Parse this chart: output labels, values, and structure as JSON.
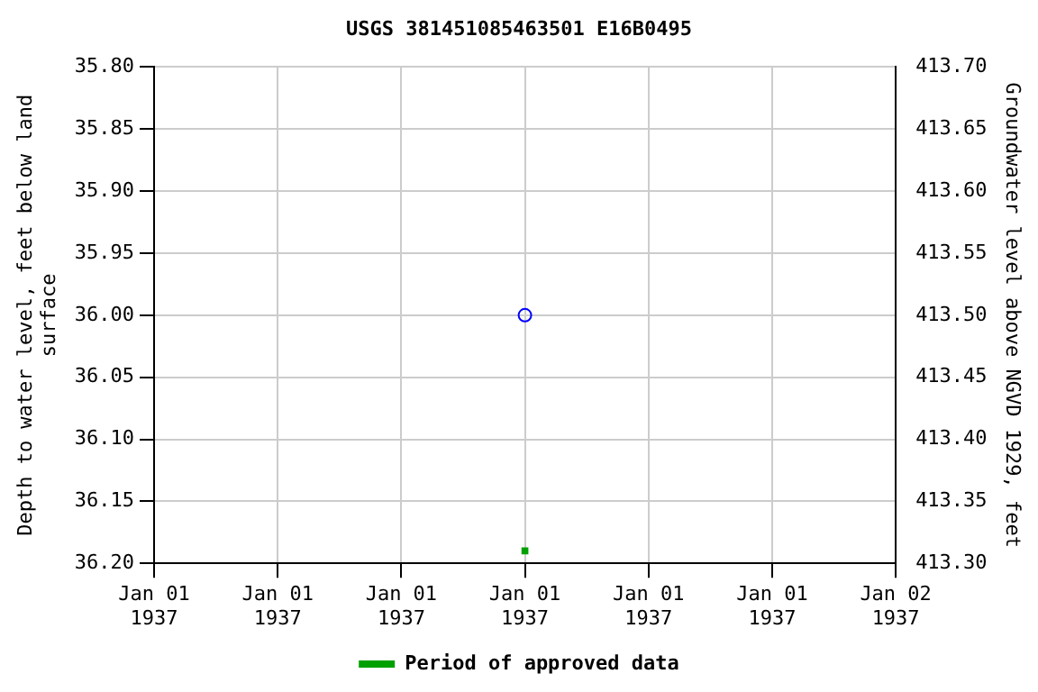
{
  "chart_data": {
    "type": "scatter",
    "title": "USGS 381451085463501 E16B0495",
    "ylabel": "Depth to water level, feet below land\nsurface",
    "y2label": "Groundwater level above NGVD 1929, feet",
    "categories": [
      "Jan 01\n1937",
      "Jan 01\n1937",
      "Jan 01\n1937",
      "Jan 01\n1937",
      "Jan 01\n1937",
      "Jan 01\n1937",
      "Jan 02\n1937"
    ],
    "ylim": [
      36.2,
      35.8
    ],
    "yticks": [
      {
        "value": 35.8,
        "label": "35.80"
      },
      {
        "value": 35.85,
        "label": "35.85"
      },
      {
        "value": 35.9,
        "label": "35.90"
      },
      {
        "value": 35.95,
        "label": "35.95"
      },
      {
        "value": 36.0,
        "label": "36.00"
      },
      {
        "value": 36.05,
        "label": "36.05"
      },
      {
        "value": 36.1,
        "label": "36.10"
      },
      {
        "value": 36.15,
        "label": "36.15"
      },
      {
        "value": 36.2,
        "label": "36.20"
      }
    ],
    "y2lim": [
      413.3,
      413.7
    ],
    "y2ticks": [
      {
        "value": 413.3,
        "label": "413.30"
      },
      {
        "value": 413.35,
        "label": "413.35"
      },
      {
        "value": 413.4,
        "label": "413.40"
      },
      {
        "value": 413.45,
        "label": "413.45"
      },
      {
        "value": 413.5,
        "label": "413.50"
      },
      {
        "value": 413.55,
        "label": "413.55"
      },
      {
        "value": 413.6,
        "label": "413.60"
      },
      {
        "value": 413.65,
        "label": "413.65"
      },
      {
        "value": 413.7,
        "label": "413.70"
      }
    ],
    "series": [
      {
        "color": "#0000ff",
        "marker": "circle",
        "values": [
          null,
          null,
          null,
          36.0,
          null,
          null,
          null
        ]
      },
      {
        "name": "Period of approved data",
        "color": "#00a000",
        "marker": "square",
        "values": [
          null,
          null,
          null,
          36.19,
          null,
          null,
          null
        ]
      }
    ],
    "grid": true,
    "legend": "bottom"
  }
}
